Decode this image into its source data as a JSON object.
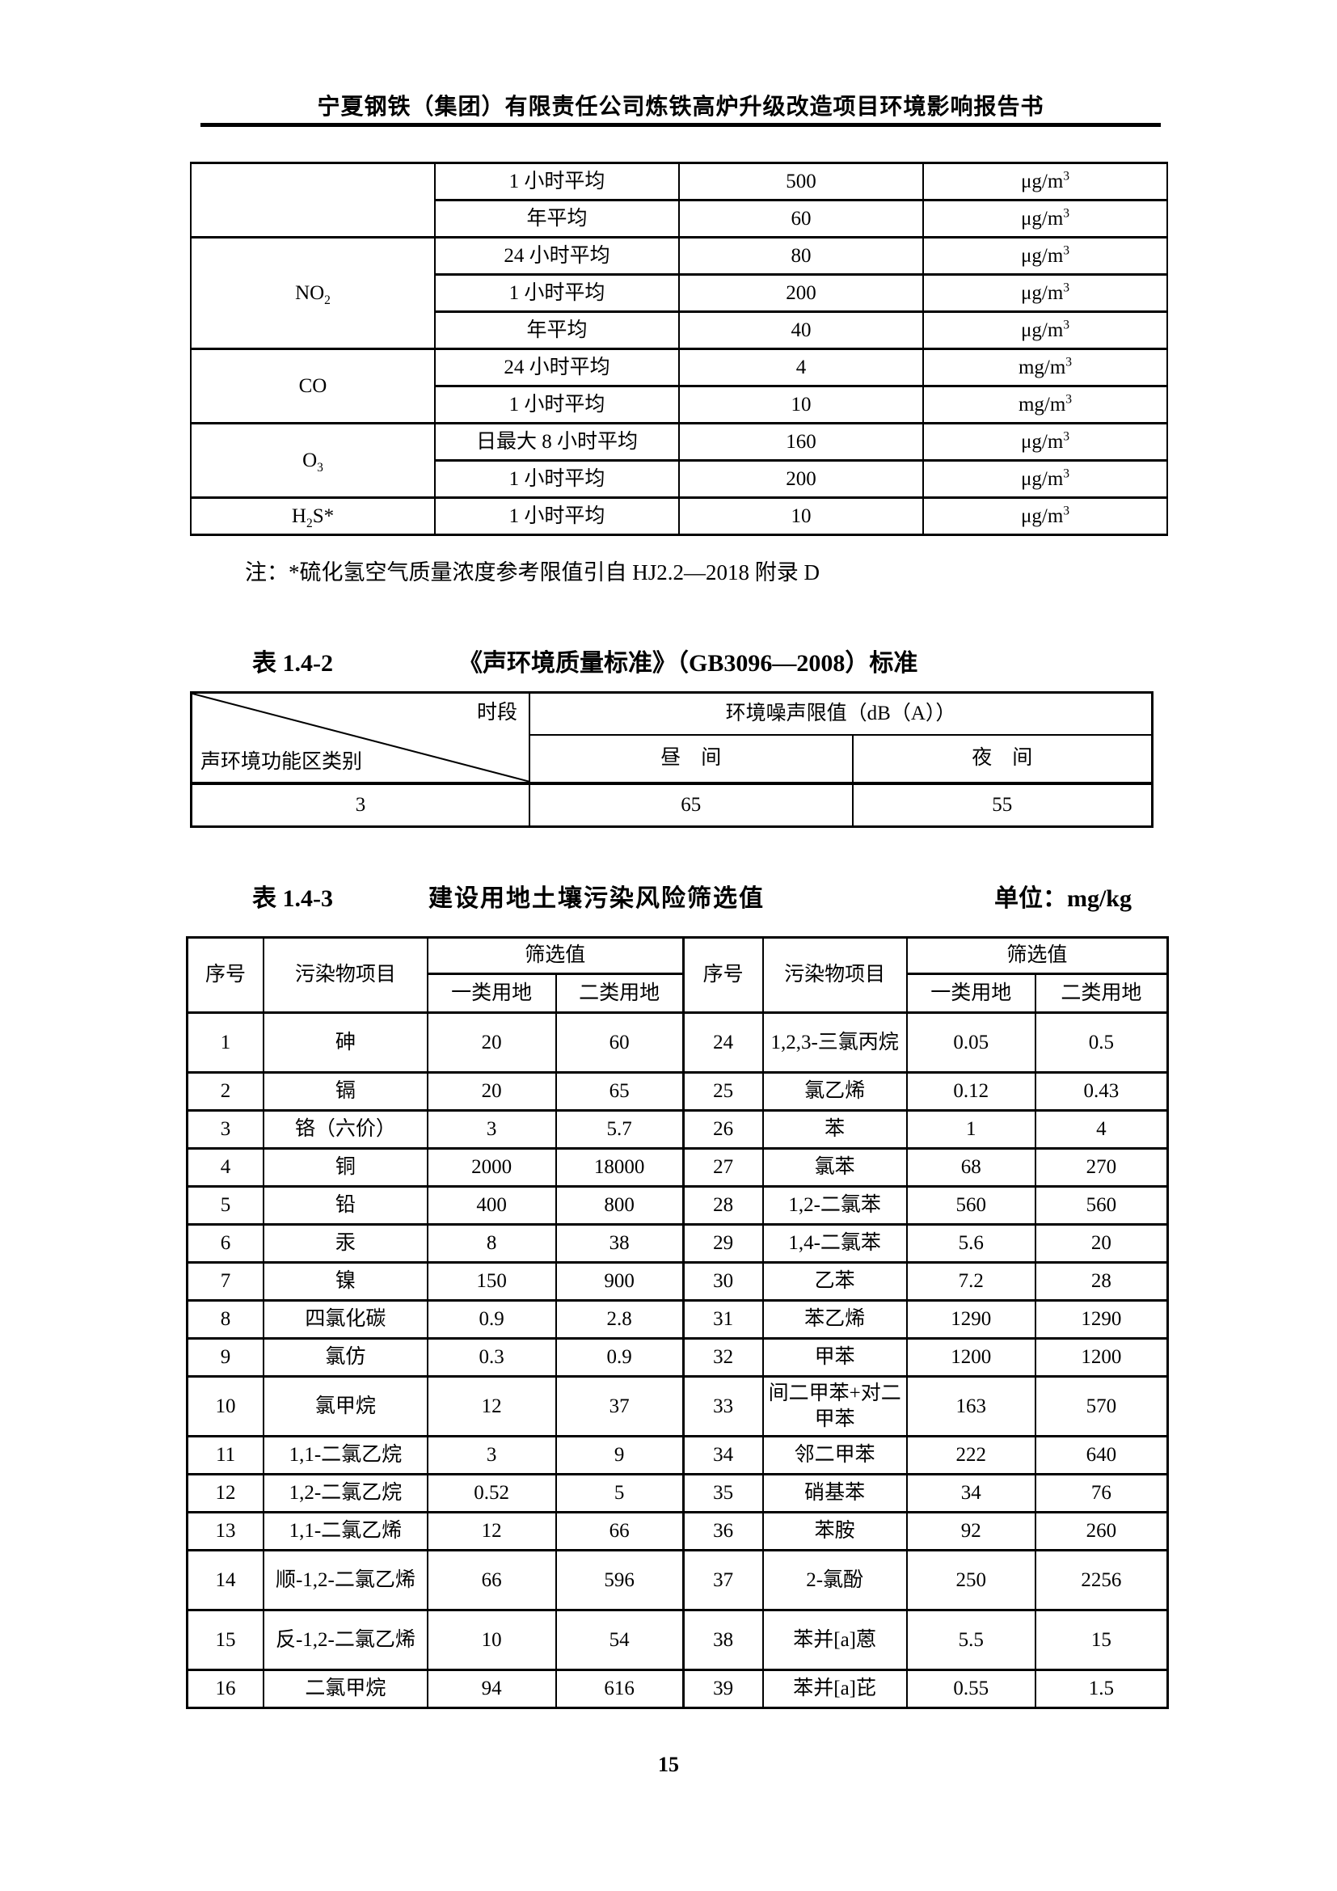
{
  "page": {
    "header": "宁夏钢铁（集团）有限责任公司炼铁高炉升级改造项目环境影响报告书",
    "page_number": "15"
  },
  "air_table": {
    "groups": [
      {
        "pollutant": "",
        "rows": [
          {
            "period": "1 小时平均",
            "value": "500",
            "unit": "μg/m<sup>3</sup>"
          },
          {
            "period": "年平均",
            "value": "60",
            "unit": "μg/m<sup>3</sup>"
          }
        ]
      },
      {
        "pollutant": "NO<sub>2</sub>",
        "rows": [
          {
            "period": "24 小时平均",
            "value": "80",
            "unit": "μg/m<sup>3</sup>"
          },
          {
            "period": "1 小时平均",
            "value": "200",
            "unit": "μg/m<sup>3</sup>"
          },
          {
            "period": "年平均",
            "value": "40",
            "unit": "μg/m<sup>3</sup>"
          }
        ]
      },
      {
        "pollutant": "CO",
        "rows": [
          {
            "period": "24 小时平均",
            "value": "4",
            "unit": "mg/m<sup>3</sup>"
          },
          {
            "period": "1 小时平均",
            "value": "10",
            "unit": "mg/m<sup>3</sup>"
          }
        ]
      },
      {
        "pollutant": "O<sub>3</sub>",
        "rows": [
          {
            "period": "日最大 8 小时平均",
            "value": "160",
            "unit": "μg/m<sup>3</sup>"
          },
          {
            "period": "1 小时平均",
            "value": "200",
            "unit": "μg/m<sup>3</sup>"
          }
        ]
      },
      {
        "pollutant": "H<sub>2</sub>S*",
        "rows": [
          {
            "period": "1 小时平均",
            "value": "10",
            "unit": "μg/m<sup>3</sup>"
          }
        ]
      }
    ],
    "note": "注：*硫化氢空气质量浓度参考限值引自 HJ2.2—2018 附录 D"
  },
  "noise_table": {
    "caption_label": "表 1.4-2",
    "caption_title": "《声环境质量标准》（GB3096—2008）标准",
    "diag_top": "时段",
    "diag_bottom": "声环境功能区类别",
    "limit_header": "环境噪声限值（dB（A））",
    "day_label": "昼　间",
    "night_label": "夜　间",
    "row": {
      "category": "3",
      "day": "65",
      "night": "55"
    }
  },
  "soil_table": {
    "caption_label": "表 1.4-3",
    "caption_title": "建设用地土壤污染风险筛选值",
    "caption_unit": "单位：mg/kg",
    "headers": {
      "no": "序号",
      "pollutant": "污染物项目",
      "screening": "筛选值",
      "class1": "一类用地",
      "class2": "二类用地"
    },
    "rows": [
      [
        "1",
        "砷",
        "20",
        "60",
        "24",
        "1,2,3-三氯丙烷",
        "0.05",
        "0.5"
      ],
      [
        "2",
        "镉",
        "20",
        "65",
        "25",
        "氯乙烯",
        "0.12",
        "0.43"
      ],
      [
        "3",
        "铬（六价）",
        "3",
        "5.7",
        "26",
        "苯",
        "1",
        "4"
      ],
      [
        "4",
        "铜",
        "2000",
        "18000",
        "27",
        "氯苯",
        "68",
        "270"
      ],
      [
        "5",
        "铅",
        "400",
        "800",
        "28",
        "1,2-二氯苯",
        "560",
        "560"
      ],
      [
        "6",
        "汞",
        "8",
        "38",
        "29",
        "1,4-二氯苯",
        "5.6",
        "20"
      ],
      [
        "7",
        "镍",
        "150",
        "900",
        "30",
        "乙苯",
        "7.2",
        "28"
      ],
      [
        "8",
        "四氯化碳",
        "0.9",
        "2.8",
        "31",
        "苯乙烯",
        "1290",
        "1290"
      ],
      [
        "9",
        "氯仿",
        "0.3",
        "0.9",
        "32",
        "甲苯",
        "1200",
        "1200"
      ],
      [
        "10",
        "氯甲烷",
        "12",
        "37",
        "33",
        "间二甲苯+对二甲苯",
        "163",
        "570"
      ],
      [
        "11",
        "1,1-二氯乙烷",
        "3",
        "9",
        "34",
        "邻二甲苯",
        "222",
        "640"
      ],
      [
        "12",
        "1,2-二氯乙烷",
        "0.52",
        "5",
        "35",
        "硝基苯",
        "34",
        "76"
      ],
      [
        "13",
        "1,1-二氯乙烯",
        "12",
        "66",
        "36",
        "苯胺",
        "92",
        "260"
      ],
      [
        "14",
        "顺-1,2-二氯乙烯",
        "66",
        "596",
        "37",
        "2-氯酚",
        "250",
        "2256"
      ],
      [
        "15",
        "反-1,2-二氯乙烯",
        "10",
        "54",
        "38",
        "苯并[a]蒽",
        "5.5",
        "15"
      ],
      [
        "16",
        "二氯甲烷",
        "94",
        "616",
        "39",
        "苯并[a]芘",
        "0.55",
        "1.5"
      ]
    ]
  }
}
